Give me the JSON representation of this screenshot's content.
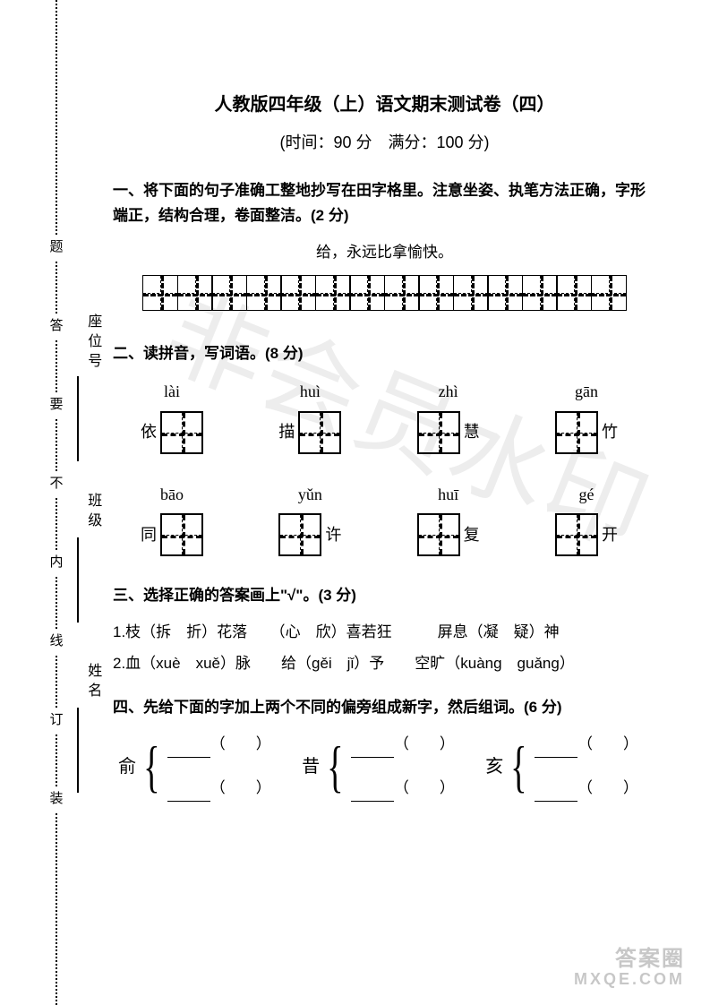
{
  "title": "人教版四年级（上）语文期末测试卷（四）",
  "subtitle": "(时间：90 分　满分：100 分)",
  "binding_labels": {
    "zuo": "座位号",
    "ban": "班级",
    "xing": "姓名"
  },
  "binding_marks": [
    "题",
    "答",
    "要",
    "不",
    "内",
    "线",
    "订",
    "装"
  ],
  "section1": {
    "heading": "一、将下面的句子准确工整地抄写在田字格里。注意坐姿、执笔方法正确，字形端正，结构合理，卷面整洁。(2 分)",
    "sentence": "给，永远比拿愉快。",
    "grid_cells": 14
  },
  "section2": {
    "heading": "二、读拼音，写词语。(8 分)",
    "row1": [
      {
        "pinyin": "lài",
        "char": "依"
      },
      {
        "pinyin": "huì",
        "char": "描"
      },
      {
        "pinyin": "zhì",
        "char": "慧"
      },
      {
        "pinyin": "gān",
        "char": "竹"
      }
    ],
    "row2": [
      {
        "pinyin": "bāo",
        "char": "同"
      },
      {
        "pinyin": "yǔn",
        "char": "许"
      },
      {
        "pinyin": "huī",
        "char": "复"
      },
      {
        "pinyin": "gé",
        "char": "开"
      }
    ],
    "char_position": [
      "left",
      "left",
      "right",
      "right",
      "left",
      "right",
      "right",
      "right"
    ]
  },
  "section3": {
    "heading": "三、选择正确的答案画上\"√\"。(3 分)",
    "line1": "1.枝（拆　折）花落　　（心　欣）喜若狂　　　屏息（凝　疑）神",
    "line2": "2.血（xuè　xuě）脉　　给（gěi　jǐ）予　　空旷（kuàng　guǎng）"
  },
  "section4": {
    "heading": "四、先给下面的字加上两个不同的偏旁组成新字，然后组词。(6 分)",
    "radicals": [
      "俞",
      "昔",
      "亥"
    ]
  },
  "watermark": "非会员水印",
  "footer": {
    "l1": "答案圈",
    "l2": "MXQE.COM"
  }
}
